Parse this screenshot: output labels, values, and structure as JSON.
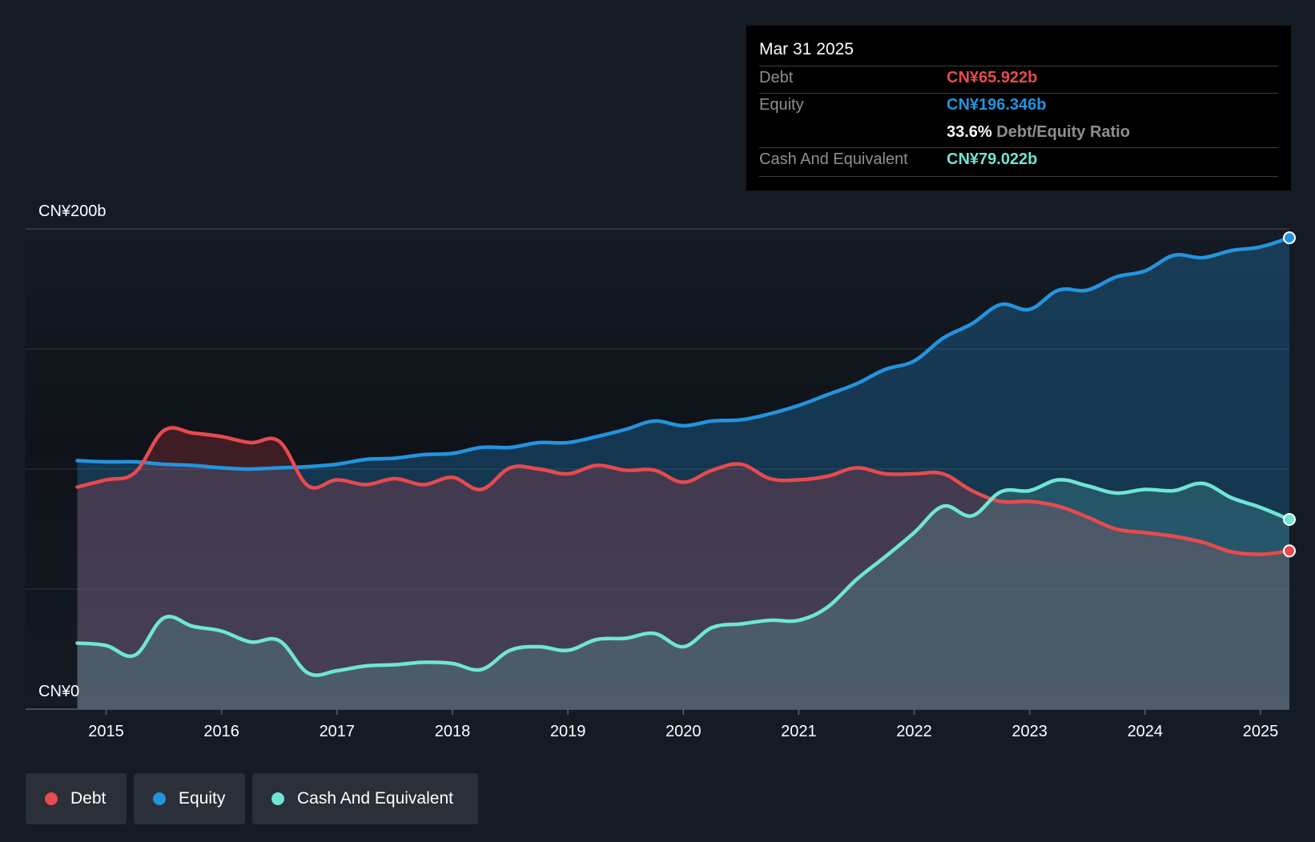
{
  "colors": {
    "background": "#151b24",
    "debt": "#e84a4f",
    "equity": "#2394df",
    "cash": "#6fe6d4",
    "grid": "#3a4049",
    "text": "#ffffff",
    "muted": "#8f8f8f"
  },
  "tooltip": {
    "date": "Mar 31 2025",
    "debt_label": "Debt",
    "debt_value": "CN¥65.922b",
    "equity_label": "Equity",
    "equity_value": "CN¥196.346b",
    "ratio_value": "33.6%",
    "ratio_label": "Debt/Equity Ratio",
    "cash_label": "Cash And Equivalent",
    "cash_value": "CN¥79.022b"
  },
  "legend": [
    {
      "label": "Debt",
      "color": "#e84a4f"
    },
    {
      "label": "Equity",
      "color": "#2394df"
    },
    {
      "label": "Cash And Equivalent",
      "color": "#6fe6d4"
    }
  ],
  "chart_data": {
    "type": "area",
    "title": "",
    "xlabel": "",
    "ylabel": "",
    "y_tick_labels": [
      "CN¥0",
      "CN¥200b"
    ],
    "ylim": [
      0,
      200
    ],
    "xlim": [
      2014.4,
      2025.25
    ],
    "x_ticks": [
      2015,
      2016,
      2017,
      2018,
      2019,
      2020,
      2021,
      2022,
      2023,
      2024,
      2025
    ],
    "x_tick_labels": [
      "2015",
      "2016",
      "2017",
      "2018",
      "2019",
      "2020",
      "2021",
      "2022",
      "2023",
      "2024",
      "2025"
    ],
    "grid": true,
    "legend_position": "bottom-left",
    "series": [
      {
        "name": "Debt",
        "color": "#e84a4f",
        "points": [
          [
            2014.75,
            92.5
          ],
          [
            2015.0,
            95.5
          ],
          [
            2015.25,
            98.5
          ],
          [
            2015.5,
            116.0
          ],
          [
            2015.75,
            115.0
          ],
          [
            2016.0,
            113.5
          ],
          [
            2016.25,
            111.0
          ],
          [
            2016.5,
            111.5
          ],
          [
            2016.75,
            93.0
          ],
          [
            2017.0,
            95.5
          ],
          [
            2017.25,
            93.5
          ],
          [
            2017.5,
            96.0
          ],
          [
            2017.75,
            93.5
          ],
          [
            2018.0,
            96.5
          ],
          [
            2018.25,
            91.5
          ],
          [
            2018.5,
            100.5
          ],
          [
            2018.75,
            100.0
          ],
          [
            2019.0,
            98.0
          ],
          [
            2019.25,
            101.5
          ],
          [
            2019.5,
            99.5
          ],
          [
            2019.75,
            99.5
          ],
          [
            2020.0,
            94.5
          ],
          [
            2020.25,
            99.5
          ],
          [
            2020.5,
            102.0
          ],
          [
            2020.75,
            96.0
          ],
          [
            2021.0,
            95.5
          ],
          [
            2021.25,
            97.0
          ],
          [
            2021.5,
            100.5
          ],
          [
            2021.75,
            98.0
          ],
          [
            2022.0,
            98.0
          ],
          [
            2022.25,
            98.0
          ],
          [
            2022.5,
            91.0
          ],
          [
            2022.75,
            86.5
          ],
          [
            2023.0,
            86.5
          ],
          [
            2023.25,
            84.5
          ],
          [
            2023.5,
            80.0
          ],
          [
            2023.75,
            75.0
          ],
          [
            2024.0,
            73.5
          ],
          [
            2024.25,
            72.0
          ],
          [
            2024.5,
            69.5
          ],
          [
            2024.75,
            65.5
          ],
          [
            2025.0,
            64.5
          ],
          [
            2025.25,
            65.9
          ]
        ]
      },
      {
        "name": "Equity",
        "color": "#2394df",
        "points": [
          [
            2014.75,
            103.5
          ],
          [
            2015.0,
            103.0
          ],
          [
            2015.25,
            103.0
          ],
          [
            2015.5,
            102.0
          ],
          [
            2015.75,
            101.5
          ],
          [
            2016.0,
            100.5
          ],
          [
            2016.25,
            100.0
          ],
          [
            2016.5,
            100.5
          ],
          [
            2016.75,
            101.0
          ],
          [
            2017.0,
            102.0
          ],
          [
            2017.25,
            104.0
          ],
          [
            2017.5,
            104.5
          ],
          [
            2017.75,
            106.0
          ],
          [
            2018.0,
            106.5
          ],
          [
            2018.25,
            109.0
          ],
          [
            2018.5,
            109.0
          ],
          [
            2018.75,
            111.0
          ],
          [
            2019.0,
            111.0
          ],
          [
            2019.25,
            113.5
          ],
          [
            2019.5,
            116.5
          ],
          [
            2019.75,
            120.0
          ],
          [
            2020.0,
            118.0
          ],
          [
            2020.25,
            120.0
          ],
          [
            2020.5,
            120.5
          ],
          [
            2020.75,
            123.0
          ],
          [
            2021.0,
            126.5
          ],
          [
            2021.25,
            131.0
          ],
          [
            2021.5,
            135.5
          ],
          [
            2021.75,
            141.5
          ],
          [
            2022.0,
            145.0
          ],
          [
            2022.25,
            154.5
          ],
          [
            2022.5,
            160.5
          ],
          [
            2022.75,
            168.5
          ],
          [
            2023.0,
            166.5
          ],
          [
            2023.25,
            174.5
          ],
          [
            2023.5,
            174.5
          ],
          [
            2023.75,
            180.0
          ],
          [
            2024.0,
            182.5
          ],
          [
            2024.25,
            189.0
          ],
          [
            2024.5,
            188.0
          ],
          [
            2024.75,
            191.0
          ],
          [
            2025.0,
            192.5
          ],
          [
            2025.25,
            196.3
          ]
        ]
      },
      {
        "name": "Cash And Equivalent",
        "color": "#6fe6d4",
        "points": [
          [
            2014.75,
            27.5
          ],
          [
            2015.0,
            26.5
          ],
          [
            2015.25,
            22.5
          ],
          [
            2015.5,
            38.0
          ],
          [
            2015.75,
            34.5
          ],
          [
            2016.0,
            32.5
          ],
          [
            2016.25,
            28.0
          ],
          [
            2016.5,
            28.5
          ],
          [
            2016.75,
            15.0
          ],
          [
            2017.0,
            16.0
          ],
          [
            2017.25,
            18.0
          ],
          [
            2017.5,
            18.5
          ],
          [
            2017.75,
            19.5
          ],
          [
            2018.0,
            19.0
          ],
          [
            2018.25,
            16.5
          ],
          [
            2018.5,
            24.5
          ],
          [
            2018.75,
            26.0
          ],
          [
            2019.0,
            24.5
          ],
          [
            2019.25,
            29.0
          ],
          [
            2019.5,
            29.5
          ],
          [
            2019.75,
            31.5
          ],
          [
            2020.0,
            26.0
          ],
          [
            2020.25,
            34.0
          ],
          [
            2020.5,
            35.5
          ],
          [
            2020.75,
            37.0
          ],
          [
            2021.0,
            37.0
          ],
          [
            2021.25,
            42.5
          ],
          [
            2021.5,
            54.0
          ],
          [
            2021.75,
            63.5
          ],
          [
            2022.0,
            73.5
          ],
          [
            2022.25,
            84.5
          ],
          [
            2022.5,
            80.5
          ],
          [
            2022.75,
            90.5
          ],
          [
            2023.0,
            91.0
          ],
          [
            2023.25,
            95.5
          ],
          [
            2023.5,
            93.0
          ],
          [
            2023.75,
            90.0
          ],
          [
            2024.0,
            91.5
          ],
          [
            2024.25,
            91.0
          ],
          [
            2024.5,
            94.0
          ],
          [
            2024.75,
            88.0
          ],
          [
            2025.0,
            84.0
          ],
          [
            2025.25,
            79.0
          ]
        ]
      }
    ]
  }
}
